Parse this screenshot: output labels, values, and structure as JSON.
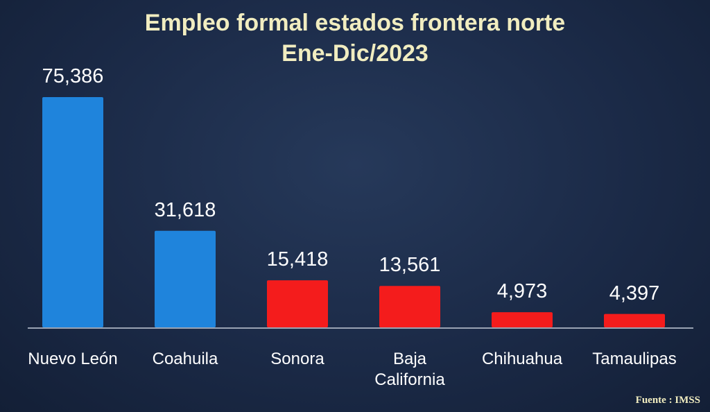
{
  "chart_data": {
    "type": "bar",
    "title": "Empleo formal estados frontera norte",
    "subtitle": "Ene-Dic/2023",
    "categories": [
      "Nuevo León",
      "Coahuila",
      "Sonora",
      "Baja California",
      "Chihuahua",
      "Tamaulipas"
    ],
    "values": [
      75386,
      31618,
      15418,
      13561,
      4973,
      4397
    ],
    "value_labels": [
      "75,386",
      "31,618",
      "15,418",
      "13,561",
      "4,973",
      "4,397"
    ],
    "colors": [
      "#1f84dc",
      "#1f84dc",
      "#f41c1c",
      "#f41c1c",
      "#f41c1c",
      "#f41c1c"
    ],
    "source": "Fuente : IMSS"
  }
}
